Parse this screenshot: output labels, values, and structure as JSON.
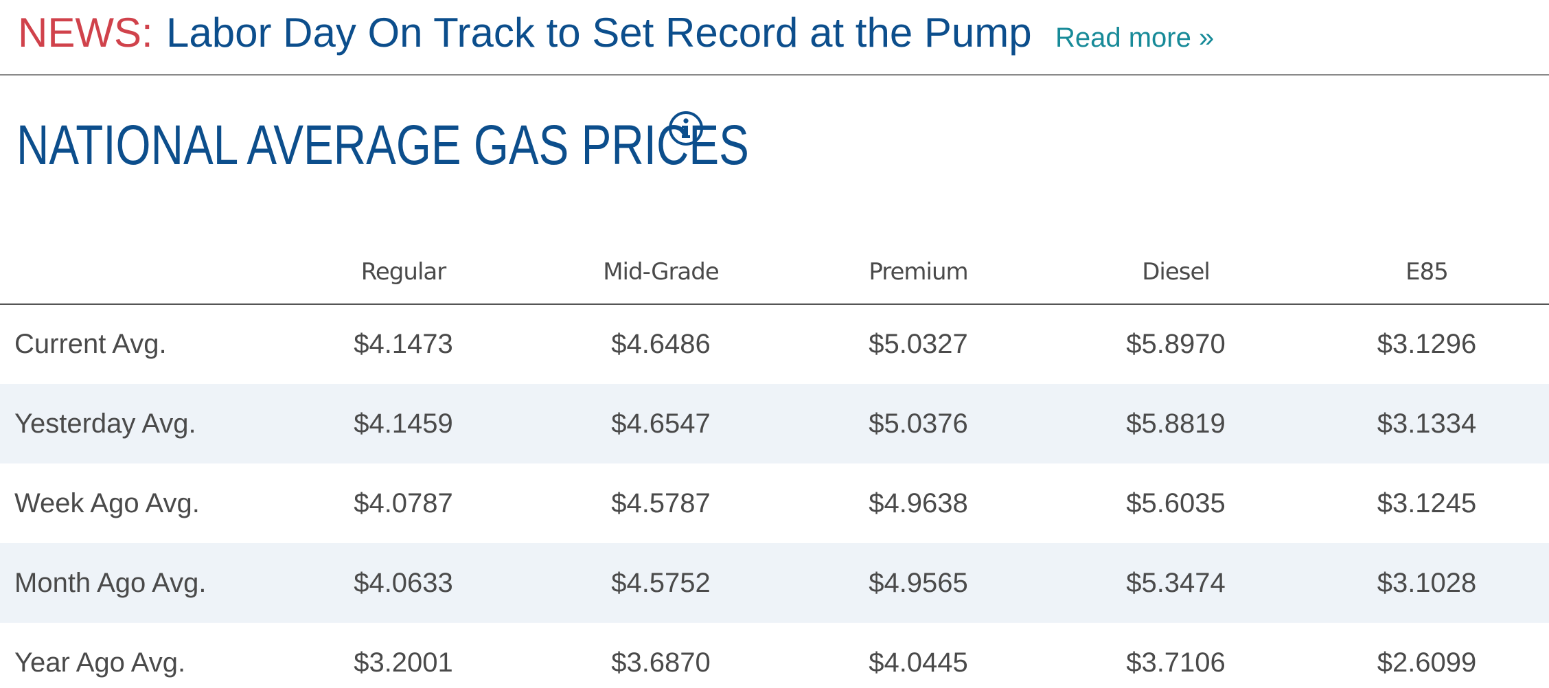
{
  "news": {
    "label": "NEWS:",
    "headline": "Labor Day On Track to Set Record at the Pump",
    "read_more": "Read more »"
  },
  "title": {
    "text": "NATIONAL AVERAGE GAS PRICES",
    "info_icon": "info-circle-icon"
  },
  "table": {
    "columns": [
      "",
      "Regular",
      "Mid-Grade",
      "Premium",
      "Diesel",
      "E85"
    ],
    "rows": [
      {
        "label": "Current Avg.",
        "values": [
          "$4.1473",
          "$4.6486",
          "$5.0327",
          "$5.8970",
          "$3.1296"
        ]
      },
      {
        "label": "Yesterday Avg.",
        "values": [
          "$4.1459",
          "$4.6547",
          "$5.0376",
          "$5.8819",
          "$3.1334"
        ]
      },
      {
        "label": "Week Ago Avg.",
        "values": [
          "$4.0787",
          "$4.5787",
          "$4.9638",
          "$5.6035",
          "$3.1245"
        ]
      },
      {
        "label": "Month Ago Avg.",
        "values": [
          "$4.0633",
          "$4.5752",
          "$4.9565",
          "$5.3474",
          "$3.1028"
        ]
      },
      {
        "label": "Year Ago Avg.",
        "values": [
          "$3.2001",
          "$3.6870",
          "$4.0445",
          "$3.7106",
          "$2.6099"
        ]
      }
    ]
  },
  "colors": {
    "news_label": "#d0424b",
    "headline": "#0c4e8c",
    "read_more": "#178a98",
    "title": "#0c4e8c",
    "text": "#4a4a4a",
    "alt_row": "#eef3f8"
  }
}
